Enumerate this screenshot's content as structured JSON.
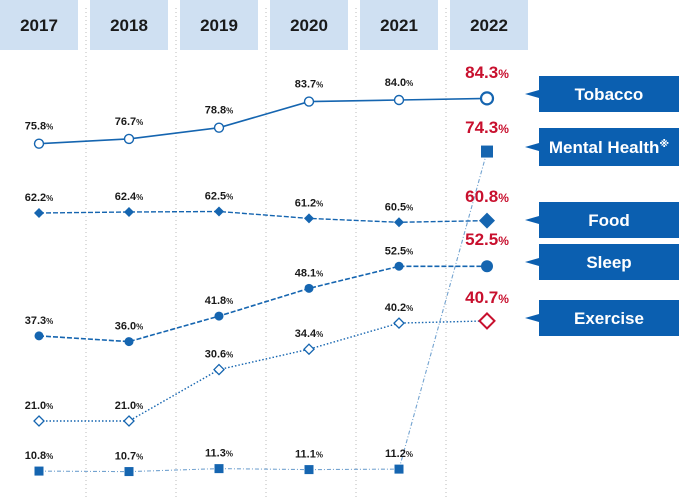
{
  "chart_data": {
    "type": "line",
    "categories": [
      "2017",
      "2018",
      "2019",
      "2020",
      "2021",
      "2022"
    ],
    "series": [
      {
        "name": "Tobacco",
        "values": [
          75.8,
          76.7,
          78.8,
          83.7,
          84.0,
          84.3
        ],
        "marker": "circle-open",
        "line": "solid"
      },
      {
        "name": "Mental Health※",
        "values": [
          10.8,
          10.7,
          11.3,
          11.1,
          11.2,
          74.3
        ],
        "marker": "square-filled",
        "line": "dashdot"
      },
      {
        "name": "Food",
        "values": [
          62.2,
          62.4,
          62.5,
          61.2,
          60.5,
          60.8
        ],
        "marker": "diamond-filled",
        "line": "dashed"
      },
      {
        "name": "Sleep",
        "values": [
          37.3,
          36.0,
          41.8,
          48.1,
          52.5,
          52.5
        ],
        "marker": "circle-filled",
        "line": "dashed"
      },
      {
        "name": "Exercise",
        "values": [
          21.0,
          21.0,
          30.6,
          34.4,
          40.2,
          40.7
        ],
        "marker": "diamond-open",
        "line": "dotted"
      }
    ],
    "value_unit": "%",
    "highlight_year": "2022",
    "colors": {
      "line": "#1565b0",
      "highlight_text": "#c8102e",
      "legend_bg": "#0b5fb0",
      "header_bg": "#cfe0f2",
      "grid": "#bbbbbb"
    },
    "grid": "vertical-dotted"
  }
}
